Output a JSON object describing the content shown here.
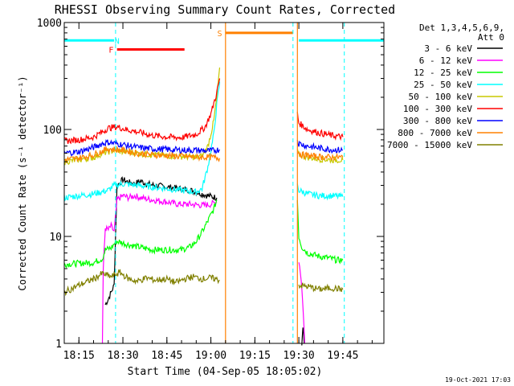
{
  "chart_data": {
    "type": "line",
    "title": "RHESSI Observing Summary Count Rates, Corrected",
    "xlabel": "Start Time (04-Sep-05 18:05:02)",
    "ylabel": "Corrected Count Rate (s⁻¹ detector⁻¹)",
    "yscale": "log",
    "xlim_min": [
      5,
      114
    ],
    "ylim": [
      1,
      1000
    ],
    "x_ticks": [
      {
        "min": 10,
        "label": "18:15"
      },
      {
        "min": 25,
        "label": "18:30"
      },
      {
        "min": 40,
        "label": "18:45"
      },
      {
        "min": 55,
        "label": "19:00"
      },
      {
        "min": 70,
        "label": "19:15"
      },
      {
        "min": 85,
        "label": "19:30"
      },
      {
        "min": 100,
        "label": "19:45"
      }
    ],
    "y_ticks": [
      {
        "value": 1,
        "label": "1"
      },
      {
        "value": 10,
        "label": "10"
      },
      {
        "value": 100,
        "label": "100"
      },
      {
        "value": 1000,
        "label": "1000"
      }
    ],
    "legend": {
      "header_lines": [
        "Det 1,3,4,5,6,9,",
        "Att 0"
      ],
      "position": "right"
    },
    "series": [
      {
        "name": "3 - 6 keV",
        "color": "#000000",
        "segments": [
          [
            [
              19,
              2.3
            ],
            [
              20,
              2.6
            ],
            [
              21,
              3.0
            ],
            [
              22,
              3.5
            ],
            [
              23,
              30
            ],
            [
              25,
              34
            ],
            [
              27,
              32
            ],
            [
              29,
              31
            ],
            [
              31,
              33
            ],
            [
              33,
              31
            ],
            [
              36,
              30
            ],
            [
              40,
              29
            ],
            [
              44,
              28
            ],
            [
              48,
              27
            ],
            [
              50,
              26
            ],
            [
              52,
              25
            ],
            [
              54,
              24
            ],
            [
              57,
              23
            ]
          ],
          [
            [
              86,
              1.0
            ],
            [
              86.4,
              1.5
            ],
            [
              86.8,
              1.0
            ]
          ]
        ]
      },
      {
        "name": "6 - 12 keV",
        "color": "#ff00ff",
        "segments": [
          [
            [
              18,
              1.0
            ],
            [
              18.3,
              5
            ],
            [
              19,
              12
            ],
            [
              20,
              11.5
            ],
            [
              21,
              12.5
            ],
            [
              22,
              11
            ],
            [
              23,
              22
            ],
            [
              25,
              24
            ],
            [
              27,
              23
            ],
            [
              29,
              24
            ],
            [
              31,
              23
            ],
            [
              35,
              22
            ],
            [
              40,
              21
            ],
            [
              44,
              20
            ],
            [
              48,
              20
            ],
            [
              52,
              19.5
            ],
            [
              55,
              20
            ],
            [
              57,
              21
            ]
          ],
          [
            [
              85,
              6
            ],
            [
              85.8,
              4
            ],
            [
              86.5,
              2
            ],
            [
              87,
              1.0
            ]
          ]
        ]
      },
      {
        "name": "12 - 25 keV",
        "color": "#00ff00",
        "segments": [
          [
            [
              5,
              5.5
            ],
            [
              10,
              5.6
            ],
            [
              15,
              5.7
            ],
            [
              18,
              6.2
            ],
            [
              19,
              7.5
            ],
            [
              21,
              7.8
            ],
            [
              22,
              8.5
            ],
            [
              23,
              9
            ],
            [
              26,
              8.5
            ],
            [
              30,
              8
            ],
            [
              35,
              7.5
            ],
            [
              40,
              7.5
            ],
            [
              45,
              7.5
            ],
            [
              48,
              8
            ],
            [
              50,
              9
            ],
            [
              52,
              11
            ],
            [
              54,
              14
            ],
            [
              56,
              18
            ],
            [
              57,
              22
            ]
          ],
          [
            [
              84.5,
              22
            ],
            [
              85,
              10
            ],
            [
              86,
              8
            ],
            [
              88,
              7
            ],
            [
              92,
              6.5
            ],
            [
              95,
              6.3
            ],
            [
              98,
              6
            ],
            [
              100,
              6
            ]
          ]
        ]
      },
      {
        "name": "25 - 50 keV",
        "color": "#00ffff",
        "segments": [
          [
            [
              5,
              23
            ],
            [
              10,
              24
            ],
            [
              15,
              25
            ],
            [
              20,
              27
            ],
            [
              22,
              30
            ],
            [
              25,
              31
            ],
            [
              30,
              30
            ],
            [
              35,
              29
            ],
            [
              40,
              28
            ],
            [
              45,
              27
            ],
            [
              50,
              26
            ],
            [
              52,
              28
            ],
            [
              54,
              45
            ],
            [
              56,
              90
            ],
            [
              57,
              170
            ],
            [
              58,
              280
            ]
          ],
          [
            [
              84.5,
              30
            ],
            [
              85,
              27
            ],
            [
              88,
              25
            ],
            [
              92,
              24
            ],
            [
              96,
              24
            ],
            [
              100,
              23.5
            ]
          ]
        ]
      },
      {
        "name": "50 - 100 keV",
        "color": "#c8c800",
        "segments": [
          [
            [
              5,
              50
            ],
            [
              10,
              52
            ],
            [
              15,
              55
            ],
            [
              18,
              60
            ],
            [
              22,
              64
            ],
            [
              25,
              62
            ],
            [
              30,
              60
            ],
            [
              35,
              58
            ],
            [
              40,
              57
            ],
            [
              45,
              56
            ],
            [
              50,
              55
            ],
            [
              52,
              56
            ],
            [
              54,
              70
            ],
            [
              56,
              120
            ],
            [
              57,
              200
            ],
            [
              58,
              380
            ]
          ],
          [
            [
              84.5,
              62
            ],
            [
              85,
              58
            ],
            [
              88,
              55
            ],
            [
              92,
              53
            ],
            [
              96,
              52
            ],
            [
              100,
              52
            ]
          ]
        ]
      },
      {
        "name": "100 - 300 keV",
        "color": "#ff0000",
        "segments": [
          [
            [
              5,
              78
            ],
            [
              10,
              80
            ],
            [
              15,
              85
            ],
            [
              18,
              95
            ],
            [
              20,
              103
            ],
            [
              23,
              106
            ],
            [
              26,
              100
            ],
            [
              30,
              95
            ],
            [
              35,
              88
            ],
            [
              40,
              85
            ],
            [
              45,
              84
            ],
            [
              50,
              90
            ],
            [
              53,
              105
            ],
            [
              55,
              140
            ],
            [
              57,
              220
            ],
            [
              58,
              300
            ]
          ],
          [
            [
              84.5,
              140
            ],
            [
              85,
              115
            ],
            [
              88,
              100
            ],
            [
              92,
              93
            ],
            [
              96,
              88
            ],
            [
              100,
              85
            ]
          ]
        ]
      },
      {
        "name": "300 - 800 keV",
        "color": "#0000ff",
        "segments": [
          [
            [
              5,
              60
            ],
            [
              10,
              62
            ],
            [
              15,
              68
            ],
            [
              18,
              74
            ],
            [
              20,
              76
            ],
            [
              25,
              72
            ],
            [
              30,
              68
            ],
            [
              35,
              66
            ],
            [
              40,
              65
            ],
            [
              45,
              64
            ],
            [
              50,
              64
            ],
            [
              55,
              63
            ],
            [
              58,
              65
            ]
          ],
          [
            [
              84.5,
              80
            ],
            [
              85,
              74
            ],
            [
              88,
              70
            ],
            [
              92,
              67
            ],
            [
              96,
              65
            ],
            [
              100,
              64
            ]
          ]
        ]
      },
      {
        "name": "800 - 7000 keV",
        "color": "#ff8000",
        "segments": [
          [
            [
              5,
              52
            ],
            [
              10,
              54
            ],
            [
              15,
              58
            ],
            [
              18,
              63
            ],
            [
              20,
              66
            ],
            [
              25,
              64
            ],
            [
              30,
              60
            ],
            [
              35,
              58
            ],
            [
              40,
              57
            ],
            [
              45,
              56
            ],
            [
              50,
              55
            ],
            [
              55,
              55
            ],
            [
              58,
              54
            ]
          ],
          [
            [
              60,
              1.0
            ],
            [
              60,
              1000
            ]
          ],
          [
            [
              84.5,
              1000
            ],
            [
              84.5,
              1.0
            ]
          ],
          [
            [
              84.6,
              62
            ],
            [
              86,
              58
            ],
            [
              90,
              56
            ],
            [
              95,
              55
            ],
            [
              100,
              55
            ]
          ]
        ]
      },
      {
        "name": "7000 - 15000 keV",
        "color": "#808000",
        "segments": [
          [
            [
              5,
              3
            ],
            [
              10,
              3.5
            ],
            [
              15,
              4
            ],
            [
              18,
              4.5
            ],
            [
              21,
              4.2
            ],
            [
              24,
              4.6
            ],
            [
              27,
              4
            ],
            [
              30,
              3.8
            ],
            [
              33,
              4.1
            ],
            [
              36,
              3.9
            ],
            [
              40,
              4
            ],
            [
              43,
              3.7
            ],
            [
              46,
              4
            ],
            [
              49,
              4.2
            ],
            [
              52,
              4
            ],
            [
              55,
              4.1
            ],
            [
              58,
              3.9
            ]
          ],
          [
            [
              85,
              3.5
            ],
            [
              88,
              3.4
            ],
            [
              92,
              3.2
            ],
            [
              96,
              3.3
            ],
            [
              100,
              3.2
            ]
          ]
        ]
      }
    ],
    "state_bars": [
      {
        "label": "N",
        "color": "#00ffff",
        "x0": 5,
        "x1": 22,
        "y": 680,
        "label_x": 23
      },
      {
        "label": "N",
        "color": "#00ffff",
        "x0": 85,
        "x1": 114,
        "y": 680
      },
      {
        "label": "F",
        "color": "#ff0000",
        "x0": 23,
        "x1": 46,
        "y": 560,
        "label_x": 21
      },
      {
        "label": "S",
        "color": "#ff8000",
        "x0": 60,
        "x1": 83,
        "y": 800,
        "label_x": 58
      }
    ],
    "vlines": [
      {
        "x": 5,
        "color": "#00ffff",
        "style": "solid"
      },
      {
        "x": 22.5,
        "color": "#00ffff",
        "style": "dashed"
      },
      {
        "x": 83,
        "color": "#00ffff",
        "style": "dashed"
      },
      {
        "x": 100.5,
        "color": "#00ffff",
        "style": "dashed"
      }
    ],
    "footer": "19-Oct-2021 17:03"
  }
}
